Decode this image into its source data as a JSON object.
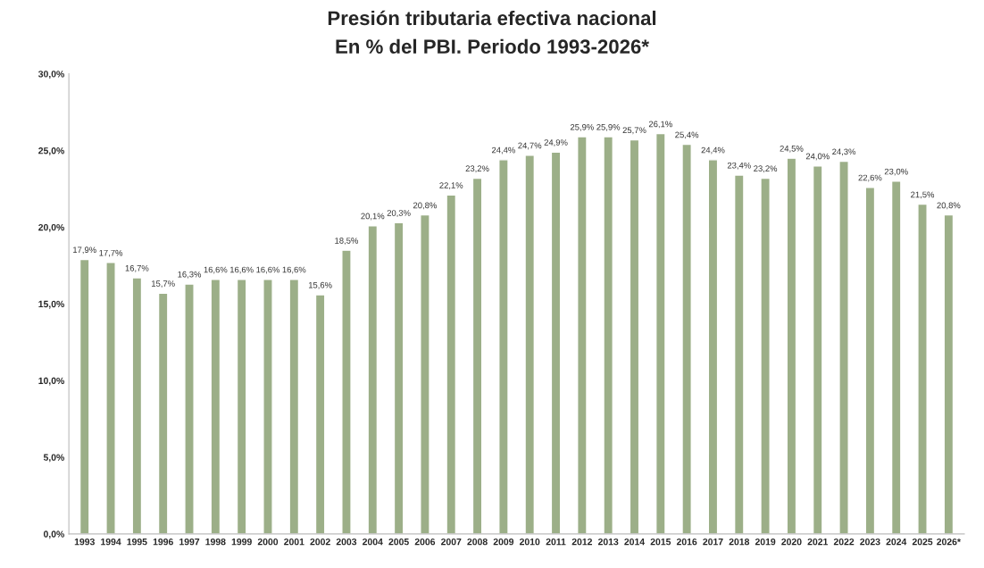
{
  "chart_data": {
    "type": "bar",
    "title": "Presión tributaria efectiva nacional",
    "subtitle": "En % del PBI. Periodo 1993-2026*",
    "categories": [
      "1993",
      "1994",
      "1995",
      "1996",
      "1997",
      "1998",
      "1999",
      "2000",
      "2001",
      "2002",
      "2003",
      "2004",
      "2005",
      "2006",
      "2007",
      "2008",
      "2009",
      "2010",
      "2011",
      "2012",
      "2013",
      "2014",
      "2015",
      "2016",
      "2017",
      "2018",
      "2019",
      "2020",
      "2021",
      "2022",
      "2023",
      "2024",
      "2025",
      "2026*"
    ],
    "values": [
      17.9,
      17.7,
      16.7,
      15.7,
      16.3,
      16.6,
      16.6,
      16.6,
      16.6,
      15.6,
      18.5,
      20.1,
      20.3,
      20.8,
      22.1,
      23.2,
      24.4,
      24.7,
      24.9,
      25.9,
      25.9,
      25.7,
      26.1,
      25.4,
      24.4,
      23.4,
      23.2,
      24.5,
      24.0,
      24.3,
      22.6,
      23.0,
      21.5,
      20.8
    ],
    "value_labels": [
      "17,9%",
      "17,7%",
      "16,7%",
      "15,7%",
      "16,3%",
      "16,6%",
      "16,6%",
      "16,6%",
      "16,6%",
      "15,6%",
      "18,5%",
      "20,1%",
      "20,3%",
      "20,8%",
      "22,1%",
      "23,2%",
      "24,4%",
      "24,7%",
      "24,9%",
      "25,9%",
      "25,9%",
      "25,7%",
      "26,1%",
      "25,4%",
      "24,4%",
      "23,4%",
      "23,2%",
      "24,5%",
      "24,0%",
      "24,3%",
      "22,6%",
      "23,0%",
      "21,5%",
      "20,8%"
    ],
    "color": "#9caf88",
    "ylim": [
      0,
      30
    ],
    "yticks": [
      {
        "value": 0,
        "label": "0,0%"
      },
      {
        "value": 5,
        "label": "5,0%"
      },
      {
        "value": 10,
        "label": "10,0%"
      },
      {
        "value": 15,
        "label": "15,0%"
      },
      {
        "value": 20,
        "label": "20,0%"
      },
      {
        "value": 25,
        "label": "25,0%"
      },
      {
        "value": 30,
        "label": "30,0%"
      }
    ],
    "grid": false
  }
}
